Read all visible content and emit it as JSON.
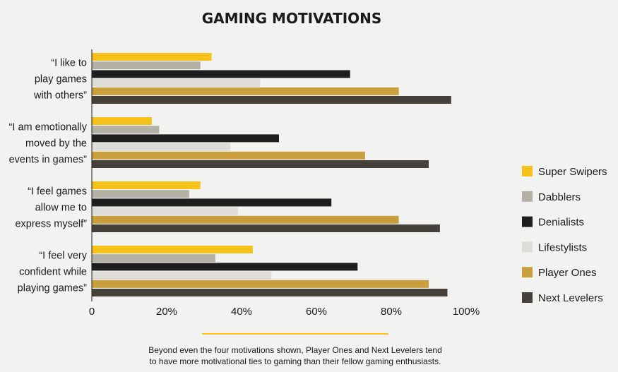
{
  "chart_data": {
    "type": "bar",
    "orientation": "horizontal",
    "title": "GAMING MOTIVATIONS",
    "categories": [
      [
        "“I like to",
        "play games",
        "with others”"
      ],
      [
        "“I am emotionally",
        "moved by the",
        "events in games”"
      ],
      [
        "“I feel games",
        "allow me to",
        "express myself”"
      ],
      [
        "“I feel very",
        "confident while",
        "playing games”"
      ]
    ],
    "series": [
      {
        "name": "Super Swipers",
        "color": "#f5c11a",
        "values": [
          32,
          16,
          29,
          43
        ]
      },
      {
        "name": "Dabblers",
        "color": "#b3b1a5",
        "values": [
          29,
          18,
          26,
          33
        ]
      },
      {
        "name": "Denialists",
        "color": "#1e1e1e",
        "values": [
          69,
          50,
          64,
          71
        ]
      },
      {
        "name": "Lifestylists",
        "color": "#dddcd6",
        "values": [
          45,
          37,
          39,
          48
        ]
      },
      {
        "name": "Player Ones",
        "color": "#c99e3c",
        "values": [
          82,
          73,
          82,
          90
        ]
      },
      {
        "name": "Next Levelers",
        "color": "#45403a",
        "values": [
          96,
          90,
          93,
          95
        ]
      }
    ],
    "xlim": [
      0,
      100
    ],
    "x_ticks": [
      "0",
      "20%",
      "40%",
      "60%",
      "80%",
      "100%"
    ],
    "legend_position": "right",
    "grid": false
  },
  "footnote": [
    "Beyond even the four motivations shown, Player Ones and Next Levelers tend",
    "to have more motivational ties to gaming than their fellow gaming enthusiasts."
  ],
  "colors": {
    "background": "#f2f2f1",
    "accent_rule": "#f5c11a",
    "axis": "#1a1a1a"
  }
}
